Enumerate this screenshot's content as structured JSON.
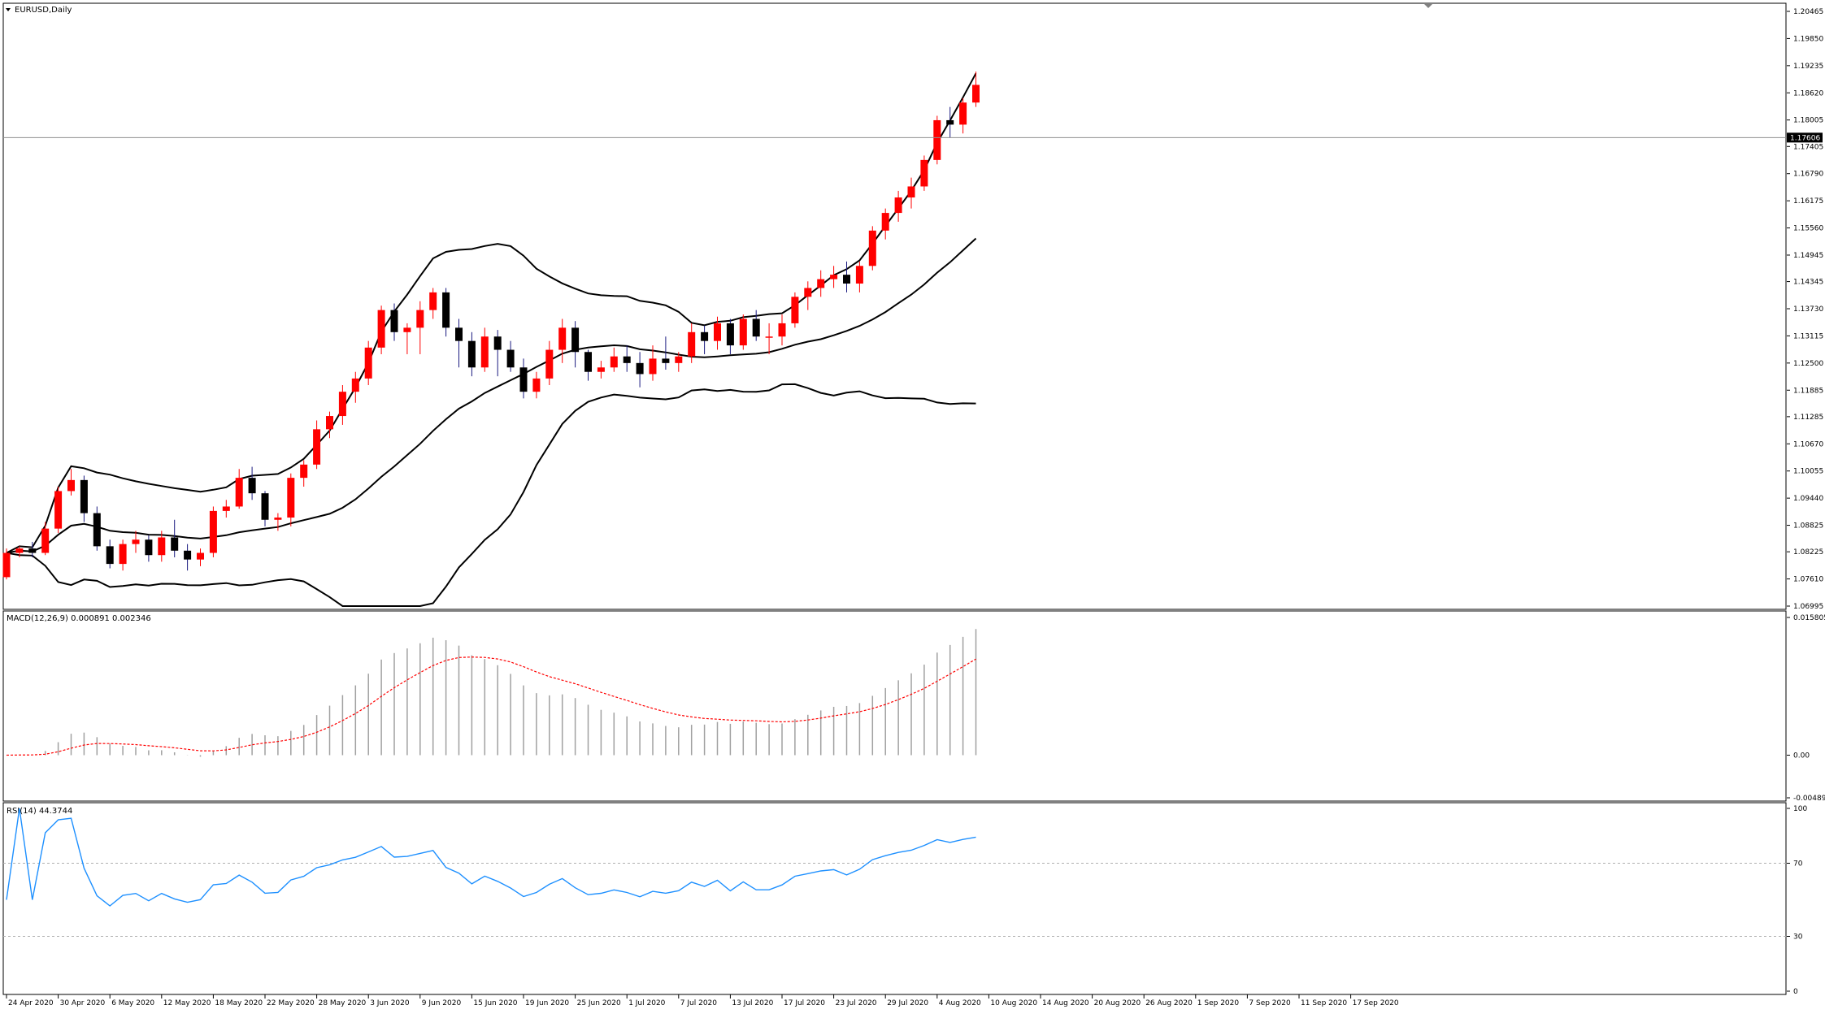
{
  "chart_data": {
    "type": "candlestick",
    "symbol_title": "EURUSD,Daily",
    "bullish_color": "#ff0000",
    "bearish_color": "#000000",
    "bands_color": "#000000",
    "current_price": 1.17606,
    "current_price_label": "1.17606",
    "price_axis": {
      "ylim": [
        1.06995,
        1.20465
      ],
      "ticks": [
        "1.20465",
        "1.19850",
        "1.19235",
        "1.18620",
        "1.18005",
        "1.17405",
        "1.16790",
        "1.16175",
        "1.15560",
        "1.14945",
        "1.14345",
        "1.13730",
        "1.13115",
        "1.12500",
        "1.11885",
        "1.11285",
        "1.10670",
        "1.10055",
        "1.09440",
        "1.08825",
        "1.08225",
        "1.07610",
        "1.06995"
      ]
    },
    "x_ticks": [
      {
        "label": "24 Apr 2020",
        "i": 0
      },
      {
        "label": "30 Apr 2020",
        "i": 4
      },
      {
        "label": "6 May 2020",
        "i": 8
      },
      {
        "label": "12 May 2020",
        "i": 12
      },
      {
        "label": "18 May 2020",
        "i": 16
      },
      {
        "label": "22 May 2020",
        "i": 20
      },
      {
        "label": "28 May 2020",
        "i": 24
      },
      {
        "label": "3 Jun 2020",
        "i": 28
      },
      {
        "label": "9 Jun 2020",
        "i": 32
      },
      {
        "label": "15 Jun 2020",
        "i": 36
      },
      {
        "label": "19 Jun 2020",
        "i": 40
      },
      {
        "label": "25 Jun 2020",
        "i": 44
      },
      {
        "label": "1 Jul 2020",
        "i": 48
      },
      {
        "label": "7 Jul 2020",
        "i": 52
      },
      {
        "label": "13 Jul 2020",
        "i": 56
      },
      {
        "label": "17 Jul 2020",
        "i": 60
      },
      {
        "label": "23 Jul 2020",
        "i": 64
      },
      {
        "label": "29 Jul 2020",
        "i": 68
      },
      {
        "label": "4 Aug 2020",
        "i": 72
      },
      {
        "label": "10 Aug 2020",
        "i": 76
      },
      {
        "label": "14 Aug 2020",
        "i": 80
      },
      {
        "label": "20 Aug 2020",
        "i": 84
      },
      {
        "label": "26 Aug 2020",
        "i": 88
      },
      {
        "label": "1 Sep 2020",
        "i": 92
      },
      {
        "label": "7 Sep 2020",
        "i": 96
      },
      {
        "label": "11 Sep 2020",
        "i": 100
      },
      {
        "label": "17 Sep 2020",
        "i": 104
      }
    ],
    "ohlc": [
      [
        1.0765,
        1.083,
        1.076,
        1.082
      ],
      [
        1.082,
        1.0835,
        1.081,
        1.083
      ],
      [
        1.083,
        1.0845,
        1.081,
        1.082
      ],
      [
        1.082,
        1.089,
        1.0815,
        1.0875
      ],
      [
        1.0875,
        1.097,
        1.0865,
        1.096
      ],
      [
        1.096,
        1.101,
        1.095,
        1.0985
      ],
      [
        1.0985,
        1.0995,
        1.089,
        1.091
      ],
      [
        1.091,
        1.0925,
        1.0825,
        1.0835
      ],
      [
        1.0835,
        1.085,
        1.0785,
        1.0795
      ],
      [
        1.0795,
        1.085,
        1.078,
        1.084
      ],
      [
        1.084,
        1.087,
        1.082,
        1.085
      ],
      [
        1.085,
        1.086,
        1.08,
        1.0815
      ],
      [
        1.0815,
        1.087,
        1.08,
        1.0855
      ],
      [
        1.0855,
        1.0895,
        1.081,
        1.0825
      ],
      [
        1.0825,
        1.084,
        1.078,
        1.0805
      ],
      [
        1.0805,
        1.083,
        1.079,
        1.082
      ],
      [
        1.082,
        1.0925,
        1.081,
        1.0915
      ],
      [
        1.0915,
        1.094,
        1.09,
        1.0925
      ],
      [
        1.0925,
        1.101,
        1.092,
        1.099
      ],
      [
        1.099,
        1.1015,
        1.094,
        1.0955
      ],
      [
        1.0955,
        1.096,
        1.088,
        1.0895
      ],
      [
        1.0895,
        1.091,
        1.087,
        1.09
      ],
      [
        1.09,
        1.1,
        1.088,
        1.099
      ],
      [
        1.099,
        1.103,
        1.097,
        1.102
      ],
      [
        1.102,
        1.112,
        1.101,
        1.11
      ],
      [
        1.11,
        1.114,
        1.108,
        1.113
      ],
      [
        1.113,
        1.12,
        1.111,
        1.1185
      ],
      [
        1.1185,
        1.123,
        1.116,
        1.1215
      ],
      [
        1.1215,
        1.13,
        1.12,
        1.1285
      ],
      [
        1.1285,
        1.138,
        1.127,
        1.137
      ],
      [
        1.137,
        1.1385,
        1.13,
        1.132
      ],
      [
        1.132,
        1.134,
        1.127,
        1.133
      ],
      [
        1.133,
        1.139,
        1.127,
        1.137
      ],
      [
        1.137,
        1.142,
        1.135,
        1.141
      ],
      [
        1.141,
        1.142,
        1.131,
        1.133
      ],
      [
        1.133,
        1.135,
        1.124,
        1.13
      ],
      [
        1.13,
        1.132,
        1.122,
        1.124
      ],
      [
        1.124,
        1.133,
        1.123,
        1.131
      ],
      [
        1.131,
        1.1325,
        1.122,
        1.128
      ],
      [
        1.128,
        1.13,
        1.123,
        1.124
      ],
      [
        1.124,
        1.126,
        1.117,
        1.1185
      ],
      [
        1.1185,
        1.123,
        1.117,
        1.1215
      ],
      [
        1.1215,
        1.13,
        1.12,
        1.128
      ],
      [
        1.128,
        1.135,
        1.125,
        1.133
      ],
      [
        1.133,
        1.1345,
        1.124,
        1.1275
      ],
      [
        1.1275,
        1.128,
        1.121,
        1.123
      ],
      [
        1.123,
        1.1255,
        1.1215,
        1.124
      ],
      [
        1.124,
        1.1285,
        1.123,
        1.1265
      ],
      [
        1.1265,
        1.129,
        1.123,
        1.125
      ],
      [
        1.125,
        1.1275,
        1.1195,
        1.1225
      ],
      [
        1.1225,
        1.129,
        1.121,
        1.126
      ],
      [
        1.126,
        1.131,
        1.1235,
        1.125
      ],
      [
        1.125,
        1.1275,
        1.123,
        1.1265
      ],
      [
        1.1265,
        1.134,
        1.125,
        1.132
      ],
      [
        1.132,
        1.1335,
        1.127,
        1.13
      ],
      [
        1.13,
        1.1355,
        1.128,
        1.134
      ],
      [
        1.134,
        1.135,
        1.127,
        1.129
      ],
      [
        1.129,
        1.136,
        1.128,
        1.135
      ],
      [
        1.135,
        1.137,
        1.13,
        1.131
      ],
      [
        1.131,
        1.134,
        1.127,
        1.131
      ],
      [
        1.131,
        1.136,
        1.129,
        1.134
      ],
      [
        1.134,
        1.141,
        1.133,
        1.14
      ],
      [
        1.14,
        1.1435,
        1.137,
        1.142
      ],
      [
        1.142,
        1.146,
        1.14,
        1.144
      ],
      [
        1.144,
        1.147,
        1.142,
        1.145
      ],
      [
        1.145,
        1.148,
        1.141,
        1.143
      ],
      [
        1.143,
        1.148,
        1.141,
        1.147
      ],
      [
        1.147,
        1.156,
        1.146,
        1.155
      ],
      [
        1.155,
        1.16,
        1.153,
        1.159
      ],
      [
        1.159,
        1.164,
        1.157,
        1.1625
      ],
      [
        1.1625,
        1.167,
        1.16,
        1.165
      ],
      [
        1.165,
        1.172,
        1.164,
        1.171
      ],
      [
        1.171,
        1.181,
        1.17,
        1.18
      ],
      [
        1.18,
        1.183,
        1.176,
        1.179
      ],
      [
        1.179,
        1.185,
        1.177,
        1.184
      ],
      [
        1.184,
        1.191,
        1.183,
        1.188
      ]
    ],
    "macd": {
      "label": "MACD(12,26,9) 0.000891 0.002346",
      "signal_color": "#ff0000",
      "ylim": [
        -0.004894,
        0.015805
      ],
      "ticks": [
        "0.015805",
        "0.00",
        "-0.004894"
      ]
    },
    "rsi": {
      "label": "RSI(14) 44.3744",
      "line_color": "#1e90ff",
      "ylim": [
        0,
        100
      ],
      "ticks": [
        "100",
        "70",
        "30",
        "0"
      ],
      "levels": [
        70,
        30
      ]
    }
  }
}
